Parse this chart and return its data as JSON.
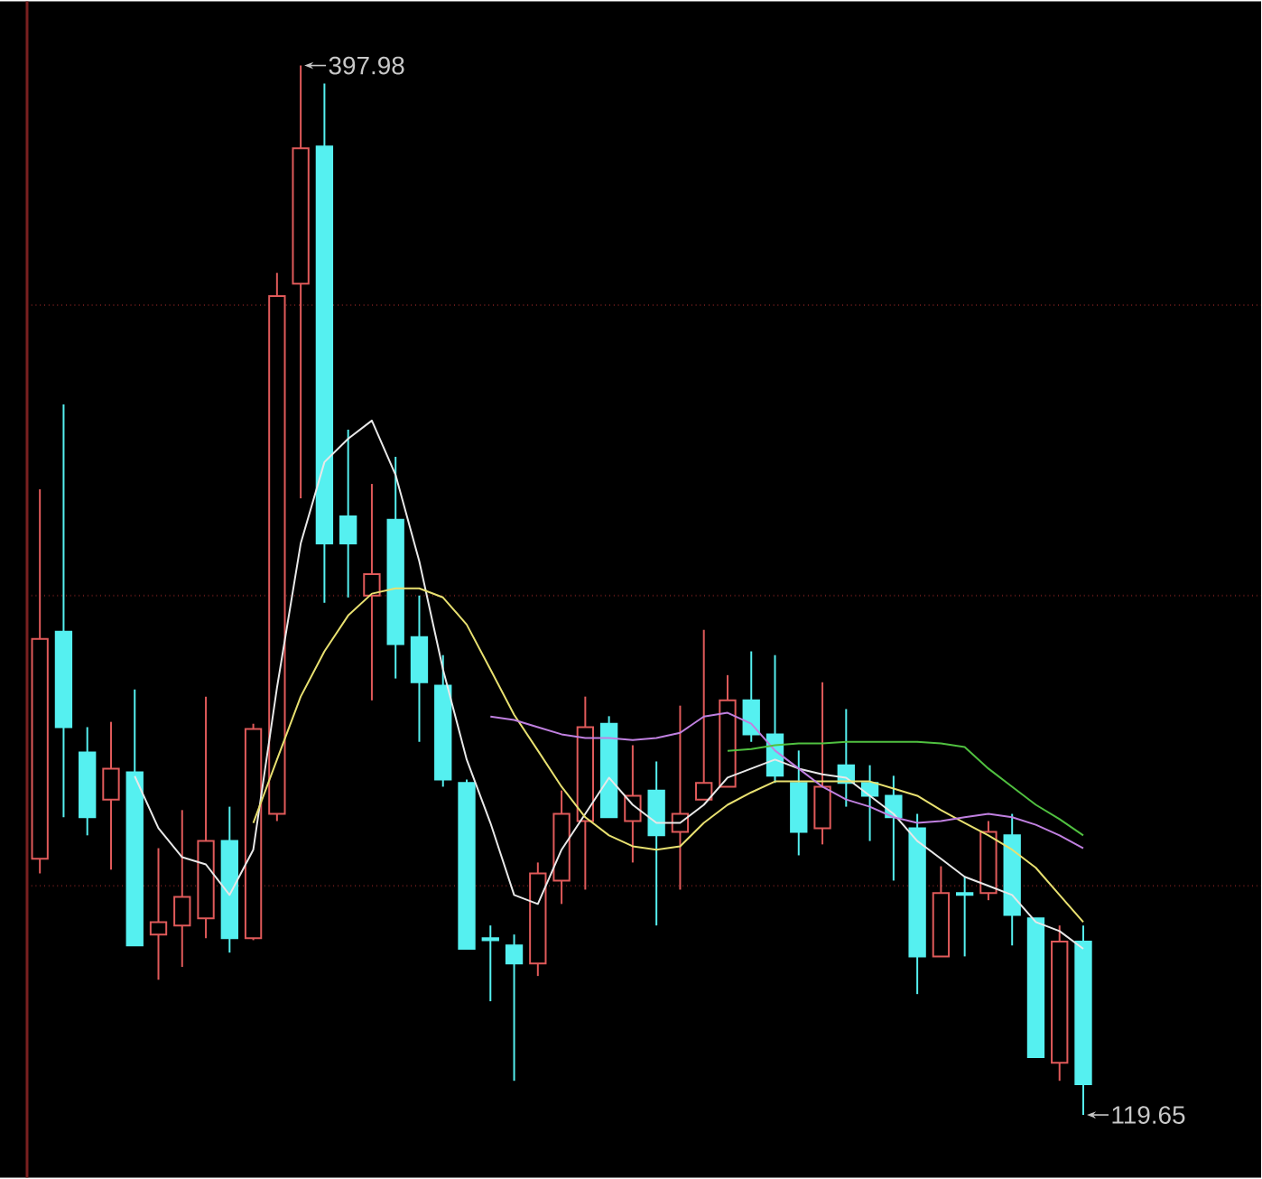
{
  "chart_data": {
    "type": "candlestick",
    "categories": [
      null,
      null,
      null,
      null,
      null,
      null,
      null,
      null,
      null,
      null,
      null,
      null,
      null,
      null,
      null,
      null,
      null,
      null,
      null,
      null,
      null,
      null,
      null,
      null,
      null,
      null,
      null,
      null,
      null,
      null,
      null,
      null,
      null,
      null,
      null,
      null,
      null,
      null,
      null,
      null,
      null,
      null,
      null,
      null,
      null
    ],
    "ohlc": [
      [
        187.6,
        285.6,
        183.7,
        245.9
      ],
      [
        247.8,
        308.1,
        198.6,
        222.5
      ],
      [
        215.8,
        222.5,
        193.8,
        198.6
      ],
      [
        203.3,
        223.9,
        184.7,
        211.5
      ],
      [
        210.5,
        232.5,
        164.6,
        164.6
      ],
      [
        167.5,
        190.4,
        155.5,
        170.8
      ],
      [
        169.9,
        200.5,
        158.9,
        177.5
      ],
      [
        171.8,
        230.6,
        166.5,
        192.3
      ],
      [
        192.3,
        201.4,
        162.7,
        166.5
      ],
      [
        166.5,
        223.4,
        166.0,
        222.0
      ],
      [
        199.5,
        343.0,
        197.6,
        336.8
      ],
      [
        340.1,
        397.98,
        283.2,
        376.0
      ],
      [
        376.5,
        393.2,
        255.5,
        271.2
      ],
      [
        278.4,
        301.4,
        256.9,
        271.2
      ],
      [
        257.4,
        287.0,
        229.6,
        263.1
      ],
      [
        277.5,
        294.2,
        235.4,
        244.5
      ],
      [
        246.4,
        257.4,
        218.6,
        234.4
      ],
      [
        233.5,
        241.6,
        206.7,
        208.6
      ],
      [
        207.7,
        208.6,
        163.7,
        163.7
      ],
      [
        166.5,
        169.9,
        149.8,
        166.0
      ],
      [
        164.6,
        167.5,
        128.7,
        159.8
      ],
      [
        159.8,
        186.6,
        156.5,
        183.7
      ],
      [
        181.8,
        205.7,
        175.6,
        199.5
      ],
      [
        197.6,
        230.6,
        179.4,
        222.5
      ],
      [
        223.4,
        225.4,
        198.6,
        198.6
      ],
      [
        197.6,
        217.7,
        186.6,
        204.3
      ],
      [
        205.7,
        213.4,
        169.9,
        193.8
      ],
      [
        194.7,
        228.2,
        179.4,
        199.5
      ],
      [
        203.3,
        248.3,
        203.3,
        207.7
      ],
      [
        206.7,
        236.3,
        206.7,
        229.6
      ],
      [
        229.6,
        242.6,
        218.6,
        220.6
      ],
      [
        220.6,
        241.6,
        207.7,
        209.6
      ],
      [
        207.7,
        216.3,
        188.5,
        194.7
      ],
      [
        195.7,
        234.4,
        191.4,
        206.7
      ],
      [
        212.4,
        227.3,
        201.4,
        207.7
      ],
      [
        207.7,
        212.4,
        192.3,
        204.3
      ],
      [
        204.3,
        209.6,
        181.8,
        198.6
      ],
      [
        195.7,
        199.5,
        151.7,
        161.7
      ],
      [
        161.7,
        185.6,
        161.7,
        178.5
      ],
      [
        178.5,
        182.8,
        161.7,
        178.0
      ],
      [
        178.5,
        197.6,
        176.6,
        194.7
      ],
      [
        193.8,
        199.5,
        164.6,
        172.7
      ],
      [
        171.8,
        171.8,
        135.0,
        135.0
      ],
      [
        133.5,
        169.9,
        128.7,
        165.6
      ],
      [
        165.6,
        169.9,
        119.65,
        127.8
      ]
    ],
    "colors": [
      "#e05a5a",
      "#55f0f0",
      "#55f0f0",
      "#e05a5a",
      "#55f0f0",
      "#e05a5a",
      "#e05a5a",
      "#e05a5a",
      "#55f0f0",
      "#e05a5a",
      "#e05a5a",
      "#e05a5a",
      "#55f0f0",
      "#55f0f0",
      "#e05a5a",
      "#55f0f0",
      "#55f0f0",
      "#55f0f0",
      "#55f0f0",
      "#55f0f0",
      "#55f0f0",
      "#e05a5a",
      "#e05a5a",
      "#e05a5a",
      "#55f0f0",
      "#e05a5a",
      "#55f0f0",
      "#e05a5a",
      "#e05a5a",
      "#e05a5a",
      "#55f0f0",
      "#55f0f0",
      "#55f0f0",
      "#e05a5a",
      "#55f0f0",
      "#55f0f0",
      "#55f0f0",
      "#55f0f0",
      "#e05a5a",
      "#55f0f0",
      "#e05a5a",
      "#55f0f0",
      "#55f0f0",
      "#e05a5a",
      "#55f0f0"
    ],
    "series": [
      {
        "type": "line",
        "color": "#e8e8e8",
        "values": [
          null,
          null,
          null,
          null,
          209.5,
          195.7,
          188.0,
          186.1,
          178.0,
          190.0,
          233.0,
          271.2,
          292.8,
          299.0,
          303.8,
          289.4,
          266.5,
          237.8,
          213.9,
          197.1,
          178.0,
          175.6,
          190.0,
          199.5,
          209.1,
          201.9,
          197.1,
          197.1,
          201.9,
          209.1,
          211.5,
          213.9,
          211.5,
          210.0,
          209.1,
          204.3,
          199.5,
          192.3,
          187.6,
          182.8,
          180.4,
          178.0,
          170.8,
          168.4,
          163.7
        ]
      },
      {
        "type": "line",
        "color": "#e8e070",
        "values": [
          null,
          null,
          null,
          null,
          null,
          null,
          null,
          null,
          null,
          197.1,
          213.9,
          230.6,
          242.6,
          252.1,
          257.9,
          259.3,
          259.3,
          256.9,
          249.7,
          237.8,
          225.8,
          216.3,
          206.7,
          198.6,
          193.8,
          190.9,
          190.0,
          190.9,
          197.1,
          201.9,
          205.2,
          208.1,
          208.1,
          208.1,
          208.1,
          208.1,
          206.2,
          204.3,
          200.5,
          197.1,
          193.8,
          190.0,
          185.2,
          178.0,
          170.8
        ]
      },
      {
        "type": "line",
        "color": "#c080e0",
        "values": [
          null,
          null,
          null,
          null,
          null,
          null,
          null,
          null,
          null,
          null,
          null,
          null,
          null,
          null,
          null,
          null,
          null,
          null,
          null,
          225.3,
          224.4,
          222.5,
          220.6,
          219.6,
          219.6,
          219.1,
          219.6,
          221.0,
          225.3,
          226.3,
          223.4,
          216.3,
          211.5,
          206.7,
          203.3,
          201.4,
          198.6,
          197.1,
          197.6,
          198.6,
          199.5,
          198.6,
          196.6,
          193.8,
          190.4
        ]
      },
      {
        "type": "line",
        "color": "#50c040",
        "values": [
          null,
          null,
          null,
          null,
          null,
          null,
          null,
          null,
          null,
          null,
          null,
          null,
          null,
          null,
          null,
          null,
          null,
          null,
          null,
          null,
          null,
          null,
          null,
          null,
          null,
          null,
          null,
          null,
          null,
          216.2,
          216.7,
          217.7,
          218.2,
          218.2,
          218.6,
          218.6,
          218.6,
          218.6,
          218.2,
          217.2,
          211.5,
          206.7,
          201.9,
          198.1,
          193.8
        ]
      }
    ],
    "ylim": [
      103,
      415
    ],
    "yticks": [
      {
        "value": 180.4,
        "label": null
      },
      {
        "value": 257.4,
        "label": null
      },
      {
        "value": 334.4,
        "label": null
      }
    ],
    "grid": "y",
    "annotations": [
      "397.98",
      "119.65"
    ]
  }
}
